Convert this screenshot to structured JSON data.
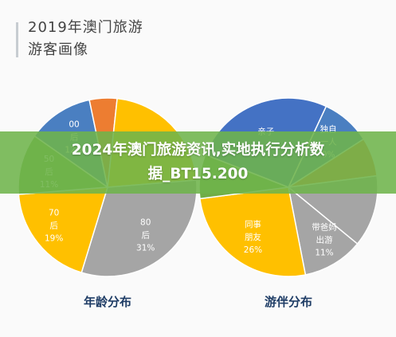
{
  "header": {
    "title_line1": "2019年澳门旅游",
    "title_line2": "游客画像"
  },
  "banner": {
    "line1": "2024年澳门旅游资讯,实地执行分析数",
    "line2": "据_BT15.200"
  },
  "chart_data": [
    {
      "type": "pie",
      "title": "年龄分布",
      "slices": [
        {
          "label": "00后",
          "value": 12,
          "display": "12%",
          "color": "#4a7fc1"
        },
        {
          "label": "",
          "value": 5,
          "display": "",
          "color": "#ed7d31"
        },
        {
          "label": "",
          "value": 22,
          "display": "",
          "color": "#ffc000"
        },
        {
          "label": "80后",
          "value": 31,
          "display": "31%",
          "color": "#a5a5a5"
        },
        {
          "label": "70后",
          "value": 19,
          "display": "19%",
          "color": "#ffc000"
        },
        {
          "label": "50后",
          "value": 11,
          "display": "11%",
          "color": "#70ad47"
        }
      ]
    },
    {
      "type": "pie",
      "title": "游伴分布",
      "slices": [
        {
          "label": "独自一人",
          "value": 9,
          "display": "9%",
          "color": "#4a7fc1"
        },
        {
          "label": "",
          "value": 7,
          "display": "",
          "color": "#ed7d31"
        },
        {
          "label": "",
          "value": 13,
          "display": "",
          "color": "#a5a5a5"
        },
        {
          "label": "带爸妈出游",
          "value": 11,
          "display": "11%",
          "color": "#a5a5a5"
        },
        {
          "label": "同事朋友",
          "value": 26,
          "display": "26%",
          "color": "#ffc000"
        },
        {
          "label": "",
          "value": 8,
          "display": "",
          "color": "#70ad47"
        },
        {
          "label": "亲子",
          "value": 26,
          "display": "",
          "color": "#4472c4"
        }
      ]
    }
  ]
}
